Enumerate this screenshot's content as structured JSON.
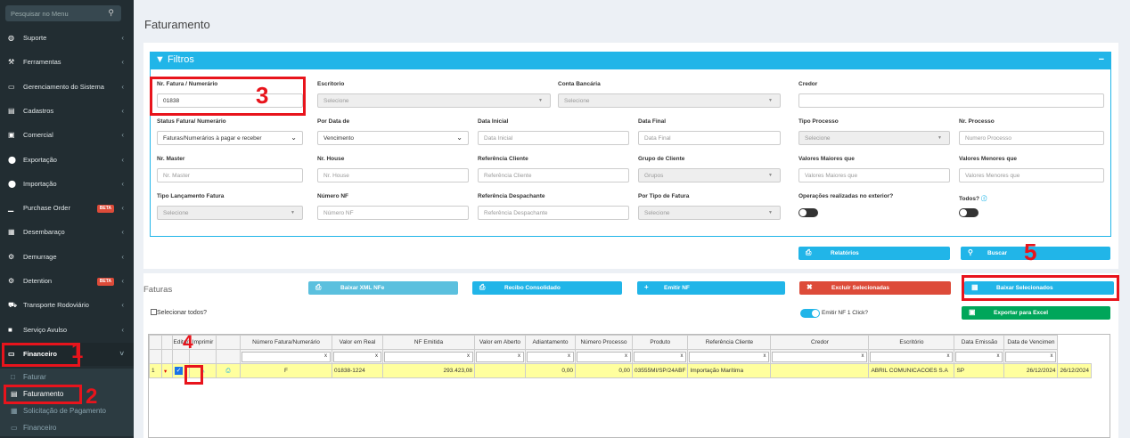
{
  "sidebar": {
    "search_placeholder": "Pesquisar no Menu",
    "items": [
      {
        "label": "Suporte",
        "icon": "globe-icon"
      },
      {
        "label": "Ferramentas",
        "icon": "wrench-icon"
      },
      {
        "label": "Gerenciamento do Sistema",
        "icon": "laptop-icon"
      },
      {
        "label": "Cadastros",
        "icon": "book-icon"
      },
      {
        "label": "Comercial",
        "icon": "briefcase-icon"
      },
      {
        "label": "Exportação",
        "icon": "upload-icon"
      },
      {
        "label": "Importação",
        "icon": "download-icon"
      },
      {
        "label": "Purchase Order",
        "icon": "chart-icon",
        "badge": "BETA"
      },
      {
        "label": "Desembaraço",
        "icon": "calculator-icon"
      },
      {
        "label": "Demurrage",
        "icon": "cogs-icon"
      },
      {
        "label": "Detention",
        "icon": "cogs-icon",
        "badge": "BETA"
      },
      {
        "label": "Transporte Rodoviário",
        "icon": "truck-icon"
      },
      {
        "label": "Serviço Avulso",
        "icon": "file-icon"
      },
      {
        "label": "Financeiro",
        "icon": "money-icon"
      }
    ],
    "subitems": [
      {
        "label": "Faturar"
      },
      {
        "label": "Faturamento"
      },
      {
        "label": "Solicitação de Pagamento"
      },
      {
        "label": "Financeiro"
      }
    ]
  },
  "page": {
    "title": "Faturamento"
  },
  "filters": {
    "title": "Filtros",
    "minimize": "−",
    "fields": {
      "nr_fatura": {
        "label": "Nr. Fatura / Numerário",
        "value": "01838"
      },
      "escritorio": {
        "label": "Escritorio",
        "value": "Selecione"
      },
      "conta_bancaria": {
        "label": "Conta Bancária",
        "value": "Selecione"
      },
      "credor": {
        "label": "Credor",
        "value": ""
      },
      "status_fatura": {
        "label": "Status Fatura/ Numerário",
        "value": "Faturas/Numerários à pagar e receber"
      },
      "por_data": {
        "label": "Por Data de",
        "value": "Vencimento"
      },
      "data_inicial": {
        "label": "Data Inicial",
        "placeholder": "Data Inicial"
      },
      "data_final": {
        "label": "Data Final",
        "placeholder": "Data Final"
      },
      "tipo_processo": {
        "label": "Tipo Processo",
        "value": "Selecione"
      },
      "nr_processo": {
        "label": "Nr. Processo",
        "placeholder": "Numero Processo"
      },
      "nr_master": {
        "label": "Nr. Master",
        "placeholder": "Nr. Master"
      },
      "nr_house": {
        "label": "Nr. House",
        "placeholder": "Nr. House"
      },
      "ref_cliente": {
        "label": "Referência Cliente",
        "placeholder": "Referência Cliente"
      },
      "grupo_cliente": {
        "label": "Grupo de Cliente",
        "value": "Grupos"
      },
      "valores_maiores": {
        "label": "Valores Maiores que",
        "placeholder": "Valores Maiores que"
      },
      "valores_menores": {
        "label": "Valores Menores que",
        "placeholder": "Valores Menores que"
      },
      "tipo_lancamento": {
        "label": "Tipo Lançamento Fatura",
        "value": "Selecione"
      },
      "numero_nf": {
        "label": "Número NF",
        "placeholder": "Número NF"
      },
      "ref_despachante": {
        "label": "Referência Despachante",
        "placeholder": "Referência Despachante"
      },
      "tipo_fatura": {
        "label": "Por Tipo de Fatura",
        "value": "Selecione"
      },
      "op_exterior": {
        "label": "Operações realizadas no exterior?",
        "on": false
      },
      "todos": {
        "label": "Todos?",
        "on": false
      }
    },
    "relatorios_label": "Relatórios",
    "buscar_label": "Buscar"
  },
  "faturas": {
    "title": "Faturas",
    "actions": {
      "baixar_xml": "Baixar XML NFe",
      "recibo": "Recibo Consolidado",
      "emitir_nf": "Emitir NF",
      "excluir": "Excluir Selecionadas",
      "baixar_sel": "Baixar Selecionados",
      "exportar": "Exportar para Excel"
    },
    "select_all_label": "Selecionar todos?",
    "emitir_click_label": "Emitir NF 1 Click?",
    "emitir_click_on": true,
    "columns": [
      "",
      "",
      "Editar",
      "Imprimir",
      "",
      "Número Fatura/Numerário",
      "Valor em Real",
      "NF Emitida",
      "Valor em Aberto",
      "Adiantamento",
      "Número Processo",
      "Produto",
      "Referência Cliente",
      "Credor",
      "Escritório",
      "Data Emissão",
      "Data de Vencimen"
    ],
    "rows": [
      {
        "idx": "1",
        "tipo": "F",
        "numero": "01838-1224",
        "valor_real": "293.423,08",
        "nf_emitida": "",
        "valor_aberto": "0,00",
        "adiantamento": "0,00",
        "processo": "03555MI/SP/24ABF",
        "produto": "Importação Marítima",
        "ref_cliente": "",
        "credor": "ABRIL COMUNICACOES S.A",
        "escritorio": "SP",
        "data_emissao": "26/12/2024",
        "data_venc": "26/12/2024"
      }
    ]
  },
  "annotations": [
    "1",
    "2",
    "3",
    "4",
    "5"
  ]
}
